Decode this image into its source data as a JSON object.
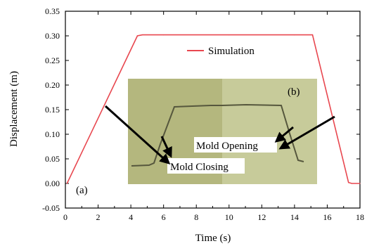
{
  "chart_data": {
    "type": "line",
    "xlabel": "Time (s)",
    "ylabel": "Displacement (m)",
    "xlim": [
      0,
      18
    ],
    "ylim": [
      -0.05,
      0.35
    ],
    "xticks": [
      0,
      2,
      4,
      6,
      8,
      10,
      12,
      14,
      16,
      18
    ],
    "yticks": [
      -0.05,
      0.0,
      0.05,
      0.1,
      0.15,
      0.2,
      0.25,
      0.3,
      0.35
    ],
    "ytick_labels": [
      "-0.05",
      "0.00",
      "0.05",
      "0.10",
      "0.15",
      "0.20",
      "0.25",
      "0.30",
      "0.35"
    ],
    "grid": false,
    "legend_position": "top-right",
    "series": [
      {
        "name": "Simulation",
        "color": "#e8474f",
        "x": [
          0.1,
          4.4,
          4.7,
          6.0,
          10.0,
          14.0,
          15.1,
          17.3,
          17.5,
          18.0
        ],
        "y": [
          0.0,
          0.3,
          0.302,
          0.302,
          0.302,
          0.302,
          0.302,
          0.002,
          0.0,
          0.0
        ]
      }
    ],
    "annotations": {
      "panel_a": "(a)",
      "panel_b": "(b)",
      "mold_opening": "Mold Opening",
      "mold_closing": "Mold Closing"
    }
  }
}
